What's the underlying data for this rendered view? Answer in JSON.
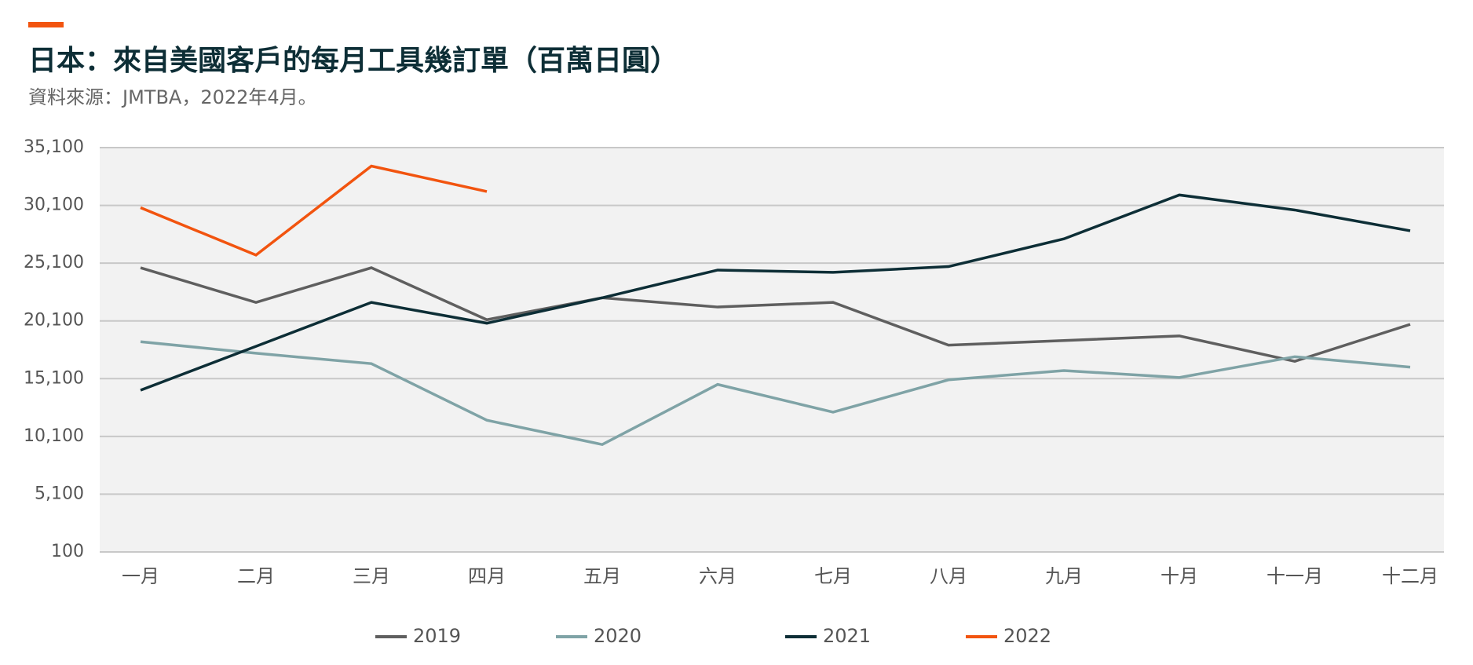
{
  "chart_data": {
    "type": "line",
    "title": "日本：來自美國客戶的每月工具幾訂單（百萬日圓）",
    "subtitle": "資料來源：JMTBA，2022年4月。",
    "categories": [
      "一月",
      "二月",
      "三月",
      "四月",
      "五月",
      "六月",
      "七月",
      "八月",
      "九月",
      "十月",
      "十一月",
      "十二月"
    ],
    "series": [
      {
        "name": "2019",
        "color": "#5f5f5f",
        "values": [
          24700,
          21700,
          24700,
          20200,
          22100,
          21300,
          21700,
          18000,
          18400,
          18800,
          16600,
          19800
        ]
      },
      {
        "name": "2020",
        "color": "#7fa3a6",
        "values": [
          18300,
          17300,
          16400,
          11500,
          9400,
          14600,
          12200,
          15000,
          15800,
          15200,
          17000,
          16100
        ]
      },
      {
        "name": "2021",
        "color": "#0d2e36",
        "values": [
          14100,
          17900,
          21700,
          19900,
          22100,
          24500,
          24300,
          24800,
          27200,
          31000,
          29700,
          27900
        ]
      },
      {
        "name": "2022",
        "color": "#f2540f",
        "values": [
          29900,
          25800,
          33500,
          31300,
          null,
          null,
          null,
          null,
          null,
          null,
          null,
          null
        ]
      }
    ],
    "ylim": [
      100,
      35100
    ],
    "yticks": [
      100,
      {
        "value": 5100,
        "label": "5,100"
      },
      {
        "value": 10100,
        "label": "10,100"
      },
      {
        "value": 15100,
        "label": "15,100"
      },
      {
        "value": 20100,
        "label": "20,100"
      },
      {
        "value": 25100,
        "label": "25,100"
      },
      {
        "value": 30100,
        "label": "30,100"
      },
      {
        "value": 35100,
        "label": "35,100"
      }
    ],
    "grid": true,
    "legend": "bottom"
  }
}
